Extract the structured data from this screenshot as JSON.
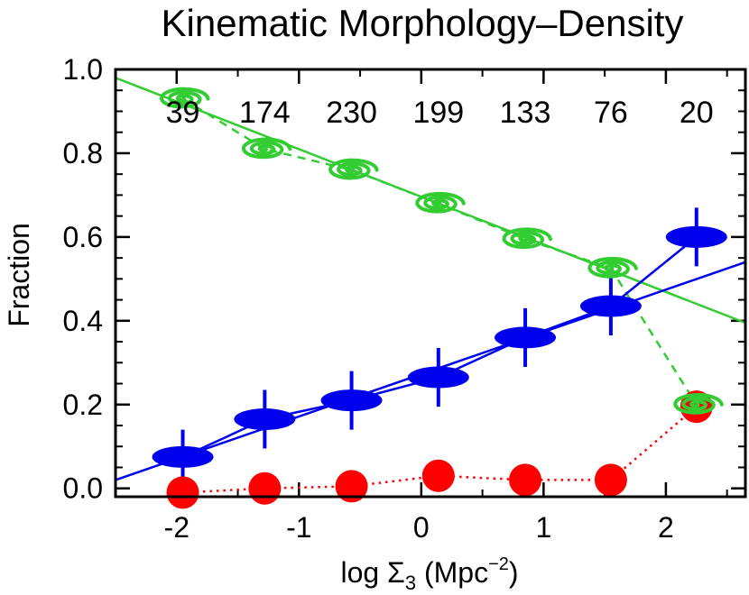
{
  "chart_data": {
    "type": "scatter",
    "title": "Kinematic Morphology–Density",
    "xlabel": {
      "prefix": "log Σ",
      "sub": "3",
      "mid": " (Mpc",
      "sup": "−2",
      "suffix": ")"
    },
    "ylabel": "Fraction",
    "xlim": [
      -2.5,
      2.65
    ],
    "ylim": [
      -0.02,
      1.0
    ],
    "xticks": [
      -2,
      -1,
      0,
      1,
      2
    ],
    "xtick_labels": [
      "-2",
      "-1",
      "0",
      "1",
      "2"
    ],
    "yticks": [
      0.0,
      0.2,
      0.4,
      0.6,
      0.8,
      1.0
    ],
    "ytick_labels": [
      "0.0",
      "0.2",
      "0.4",
      "0.6",
      "0.8",
      "1.0"
    ],
    "grid": false,
    "legend": "none",
    "x": [
      -1.95,
      -1.28,
      -0.57,
      0.14,
      0.85,
      1.55,
      2.25
    ],
    "counts": [
      "39",
      "174",
      "230",
      "199",
      "133",
      "76",
      "20"
    ],
    "series": [
      {
        "marker": "spiral",
        "color": "#33cc33",
        "values": [
          0.93,
          0.81,
          0.76,
          0.68,
          0.595,
          0.525,
          0.2
        ],
        "connect": "dashed"
      },
      {
        "marker": "ellipse",
        "color": "#0000ee",
        "values": [
          0.075,
          0.165,
          0.21,
          0.265,
          0.36,
          0.435,
          0.6
        ],
        "errors": [
          0.065,
          0.07,
          0.07,
          0.07,
          0.07,
          0.07,
          0.07
        ],
        "connect": "solid"
      },
      {
        "marker": "circle",
        "color": "#ff0000",
        "values": [
          -0.01,
          0.0,
          0.005,
          0.03,
          0.02,
          0.02,
          0.195
        ],
        "connect": "dotted"
      }
    ],
    "fits": [
      {
        "color": "#33cc33",
        "x": [
          -2.5,
          2.65
        ],
        "y": [
          0.98,
          0.395
        ]
      },
      {
        "color": "#0000ee",
        "x": [
          -2.5,
          2.65
        ],
        "y": [
          0.02,
          0.54
        ]
      }
    ]
  }
}
